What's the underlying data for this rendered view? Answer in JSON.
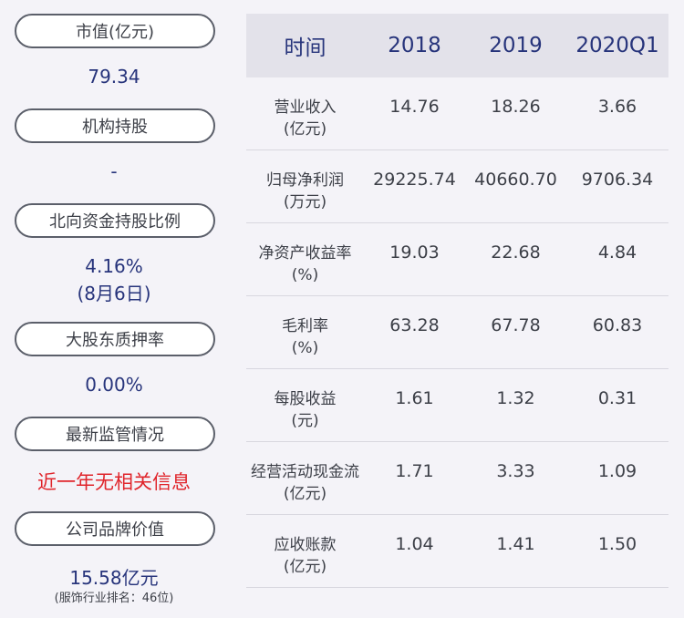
{
  "left": {
    "market_cap": {
      "label": "市值(亿元)",
      "value": "79.34"
    },
    "institution": {
      "label": "机构持股",
      "value": "-"
    },
    "northbound": {
      "label": "北向资金持股比例",
      "value": "4.16%",
      "date": "(8月6日)"
    },
    "pledge": {
      "label": "大股东质押率",
      "value": "0.00%"
    },
    "regulation": {
      "label": "最新监管情况",
      "value": "近一年无相关信息"
    },
    "brand": {
      "label": "公司品牌价值",
      "value": "15.58亿元",
      "note": "(服饰行业排名：46位)"
    }
  },
  "table": {
    "headers": [
      "时间",
      "2018",
      "2019",
      "2020Q1"
    ],
    "rows": [
      {
        "label1": "营业收入",
        "label2": "(亿元)",
        "values": [
          "14.76",
          "18.26",
          "3.66"
        ]
      },
      {
        "label1": "归母净利润",
        "label2": "(万元)",
        "values": [
          "29225.74",
          "40660.70",
          "9706.34"
        ]
      },
      {
        "label1": "净资产收益率",
        "label2": "(%)",
        "values": [
          "19.03",
          "22.68",
          "4.84"
        ]
      },
      {
        "label1": "毛利率",
        "label2": "(%)",
        "values": [
          "63.28",
          "67.78",
          "60.83"
        ]
      },
      {
        "label1": "每股收益",
        "label2": "(元)",
        "values": [
          "1.61",
          "1.32",
          "0.31"
        ]
      },
      {
        "label1": "经营活动现金流",
        "label2": "(亿元)",
        "values": [
          "1.71",
          "3.33",
          "1.09"
        ]
      },
      {
        "label1": "应收账款",
        "label2": "(亿元)",
        "values": [
          "1.04",
          "1.41",
          "1.50"
        ]
      }
    ]
  },
  "colors": {
    "background": "#f4f3f8",
    "header_bg": "#e3e2ea",
    "value_blue": "#27347b",
    "alert_red": "#e0252b",
    "pill_border": "#5b5f6a"
  }
}
